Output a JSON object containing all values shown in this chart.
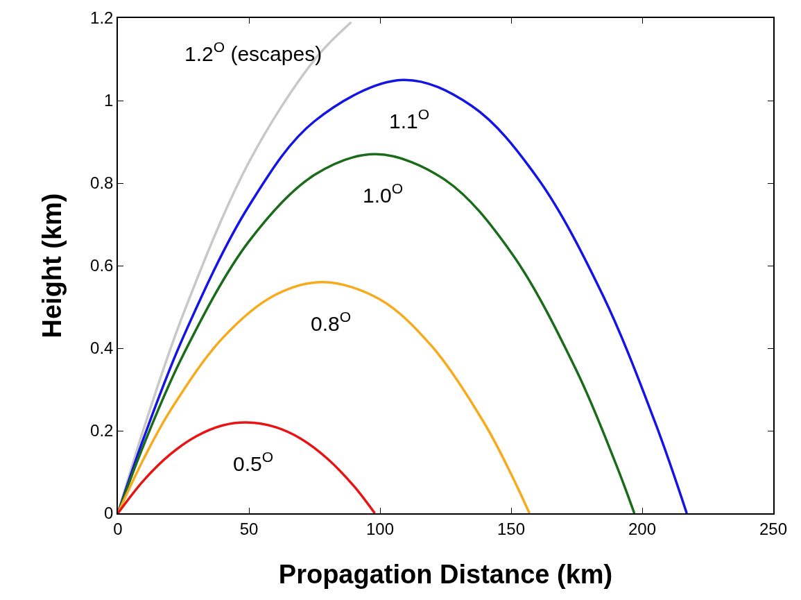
{
  "chart_data": {
    "type": "line",
    "xlabel": "Propagation Distance (km)",
    "ylabel": "Height (km)",
    "xlim": [
      0,
      250
    ],
    "xticks": [
      0,
      50,
      100,
      150,
      200,
      250
    ],
    "ylim": [
      0,
      1.2
    ],
    "yticks": [
      0,
      0.2,
      0.4,
      0.6,
      0.8,
      1,
      1.2
    ],
    "legend": false,
    "marker": "none",
    "line_style": "solid",
    "series": [
      {
        "name": "1.2$^{O}$ (escapes)",
        "color": "#c8c8c8",
        "x": [
          0,
          10,
          25,
          50,
          75,
          89
        ],
        "values": [
          0,
          0.208,
          0.484,
          0.851,
          1.099,
          1.19
        ]
      },
      {
        "name": "1.1$^{O}$",
        "color": "#1414e6",
        "x": [
          0,
          10,
          25,
          50,
          75,
          108.5,
          135,
          160,
          185,
          205,
          217
        ],
        "values": [
          0,
          0.185,
          0.428,
          0.745,
          0.95,
          1.05,
          0.987,
          0.813,
          0.528,
          0.219,
          0
        ]
      },
      {
        "name": "1.0$^{O}$",
        "color": "#1a6b1a",
        "x": [
          0,
          10,
          25,
          50,
          75,
          98.5,
          125,
          150,
          175,
          190,
          197
        ],
        "values": [
          0,
          0.168,
          0.385,
          0.659,
          0.82,
          0.87,
          0.807,
          0.632,
          0.345,
          0.119,
          0
        ]
      },
      {
        "name": "0.8$^{O}$",
        "color": "#f6aa1c",
        "x": [
          0,
          10,
          20,
          40,
          60,
          78.5,
          100,
          120,
          140,
          150,
          157
        ],
        "values": [
          0,
          0.134,
          0.249,
          0.425,
          0.529,
          0.56,
          0.518,
          0.403,
          0.216,
          0.095,
          0
        ]
      },
      {
        "name": "0.5$^{O}$",
        "color": "#e81414",
        "x": [
          0,
          10,
          20,
          30,
          40,
          49,
          60,
          70,
          80,
          90,
          98
        ],
        "values": [
          0,
          0.081,
          0.143,
          0.187,
          0.213,
          0.22,
          0.209,
          0.18,
          0.132,
          0.066,
          0
        ]
      }
    ]
  }
}
